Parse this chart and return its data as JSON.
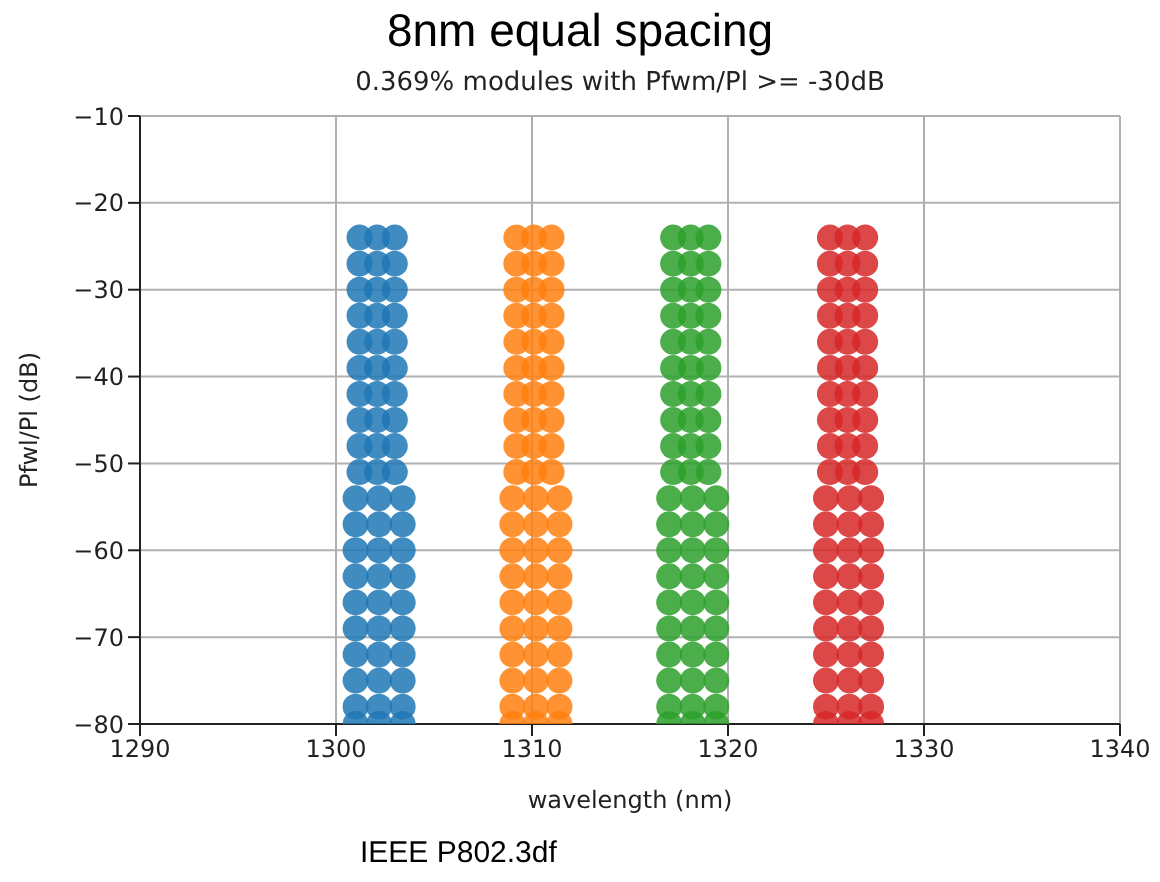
{
  "chart_data": {
    "type": "scatter",
    "title": "8nm equal spacing",
    "subtitle": "0.369% modules with Pfwm/Pl >= -30dB",
    "xlabel": "wavelength (nm)",
    "ylabel": "Pfwl/Pl (dB)",
    "annotations": [
      "IEEE P802.3df"
    ],
    "xlim": [
      1290,
      1340
    ],
    "xticks": [
      1290,
      1300,
      1310,
      1320,
      1330,
      1340
    ],
    "ylim": [
      -80,
      -10
    ],
    "yticks": [
      -80,
      -70,
      -60,
      -50,
      -40,
      -30,
      -20,
      -10
    ],
    "grid": true,
    "legend": false,
    "marker": "circle",
    "series": [
      {
        "color": "#1f77b4",
        "x": [
          1301.2,
          1302.1,
          1303.0,
          1301.2,
          1302.1,
          1303.0,
          1301.2,
          1302.1,
          1303.0,
          1301.2,
          1302.1,
          1303.0,
          1301.2,
          1302.1,
          1303.0,
          1301.2,
          1302.1,
          1303.0,
          1301.2,
          1302.1,
          1303.0,
          1301.2,
          1302.1,
          1303.0,
          1301.2,
          1302.1,
          1303.0,
          1301.2,
          1302.1,
          1303.0,
          1301.0,
          1302.2,
          1303.4,
          1301.0,
          1302.2,
          1303.4,
          1301.0,
          1302.2,
          1303.4,
          1301.0,
          1302.2,
          1303.4,
          1301.0,
          1302.2,
          1303.4,
          1301.0,
          1302.2,
          1303.4,
          1301.0,
          1302.2,
          1303.4,
          1301.0,
          1302.2,
          1303.4,
          1301.0,
          1302.2,
          1303.4,
          1301.0,
          1302.2,
          1303.4
        ],
        "values": [
          -24,
          -24,
          -24,
          -27,
          -27,
          -27,
          -30,
          -30,
          -30,
          -33,
          -33,
          -33,
          -36,
          -36,
          -36,
          -39,
          -39,
          -39,
          -42,
          -42,
          -42,
          -45,
          -45,
          -45,
          -48,
          -48,
          -48,
          -51,
          -51,
          -51,
          -54,
          -54,
          -54,
          -57,
          -57,
          -57,
          -60,
          -60,
          -60,
          -63,
          -63,
          -63,
          -66,
          -66,
          -66,
          -69,
          -69,
          -69,
          -72,
          -72,
          -72,
          -75,
          -75,
          -75,
          -78,
          -78,
          -78,
          -80,
          -80,
          -80
        ]
      },
      {
        "color": "#ff7f0e",
        "x": [
          1309.2,
          1310.1,
          1311.0,
          1309.2,
          1310.1,
          1311.0,
          1309.2,
          1310.1,
          1311.0,
          1309.2,
          1310.1,
          1311.0,
          1309.2,
          1310.1,
          1311.0,
          1309.2,
          1310.1,
          1311.0,
          1309.2,
          1310.1,
          1311.0,
          1309.2,
          1310.1,
          1311.0,
          1309.2,
          1310.1,
          1311.0,
          1309.2,
          1310.1,
          1311.0,
          1309.0,
          1310.2,
          1311.4,
          1309.0,
          1310.2,
          1311.4,
          1309.0,
          1310.2,
          1311.4,
          1309.0,
          1310.2,
          1311.4,
          1309.0,
          1310.2,
          1311.4,
          1309.0,
          1310.2,
          1311.4,
          1309.0,
          1310.2,
          1311.4,
          1309.0,
          1310.2,
          1311.4,
          1309.0,
          1310.2,
          1311.4,
          1309.0,
          1310.2,
          1311.4
        ],
        "values": [
          -24,
          -24,
          -24,
          -27,
          -27,
          -27,
          -30,
          -30,
          -30,
          -33,
          -33,
          -33,
          -36,
          -36,
          -36,
          -39,
          -39,
          -39,
          -42,
          -42,
          -42,
          -45,
          -45,
          -45,
          -48,
          -48,
          -48,
          -51,
          -51,
          -51,
          -54,
          -54,
          -54,
          -57,
          -57,
          -57,
          -60,
          -60,
          -60,
          -63,
          -63,
          -63,
          -66,
          -66,
          -66,
          -69,
          -69,
          -69,
          -72,
          -72,
          -72,
          -75,
          -75,
          -75,
          -78,
          -78,
          -78,
          -80,
          -80,
          -80
        ]
      },
      {
        "color": "#2ca02c",
        "x": [
          1317.2,
          1318.1,
          1319.0,
          1317.2,
          1318.1,
          1319.0,
          1317.2,
          1318.1,
          1319.0,
          1317.2,
          1318.1,
          1319.0,
          1317.2,
          1318.1,
          1319.0,
          1317.2,
          1318.1,
          1319.0,
          1317.2,
          1318.1,
          1319.0,
          1317.2,
          1318.1,
          1319.0,
          1317.2,
          1318.1,
          1319.0,
          1317.2,
          1318.1,
          1319.0,
          1317.0,
          1318.2,
          1319.4,
          1317.0,
          1318.2,
          1319.4,
          1317.0,
          1318.2,
          1319.4,
          1317.0,
          1318.2,
          1319.4,
          1317.0,
          1318.2,
          1319.4,
          1317.0,
          1318.2,
          1319.4,
          1317.0,
          1318.2,
          1319.4,
          1317.0,
          1318.2,
          1319.4,
          1317.0,
          1318.2,
          1319.4,
          1317.0,
          1318.2,
          1319.4
        ],
        "values": [
          -24,
          -24,
          -24,
          -27,
          -27,
          -27,
          -30,
          -30,
          -30,
          -33,
          -33,
          -33,
          -36,
          -36,
          -36,
          -39,
          -39,
          -39,
          -42,
          -42,
          -42,
          -45,
          -45,
          -45,
          -48,
          -48,
          -48,
          -51,
          -51,
          -51,
          -54,
          -54,
          -54,
          -57,
          -57,
          -57,
          -60,
          -60,
          -60,
          -63,
          -63,
          -63,
          -66,
          -66,
          -66,
          -69,
          -69,
          -69,
          -72,
          -72,
          -72,
          -75,
          -75,
          -75,
          -78,
          -78,
          -78,
          -80,
          -80,
          -80
        ]
      },
      {
        "color": "#d62728",
        "x": [
          1325.2,
          1326.1,
          1327.0,
          1325.2,
          1326.1,
          1327.0,
          1325.2,
          1326.1,
          1327.0,
          1325.2,
          1326.1,
          1327.0,
          1325.2,
          1326.1,
          1327.0,
          1325.2,
          1326.1,
          1327.0,
          1325.2,
          1326.1,
          1327.0,
          1325.2,
          1326.1,
          1327.0,
          1325.2,
          1326.1,
          1327.0,
          1325.2,
          1326.1,
          1327.0,
          1325.0,
          1326.2,
          1327.3,
          1325.0,
          1326.2,
          1327.3,
          1325.0,
          1326.2,
          1327.3,
          1325.0,
          1326.2,
          1327.3,
          1325.0,
          1326.2,
          1327.3,
          1325.0,
          1326.2,
          1327.3,
          1325.0,
          1326.2,
          1327.3,
          1325.0,
          1326.2,
          1327.3,
          1325.0,
          1326.2,
          1327.3,
          1325.0,
          1326.2,
          1327.3
        ],
        "values": [
          -24,
          -24,
          -24,
          -27,
          -27,
          -27,
          -30,
          -30,
          -30,
          -33,
          -33,
          -33,
          -36,
          -36,
          -36,
          -39,
          -39,
          -39,
          -42,
          -42,
          -42,
          -45,
          -45,
          -45,
          -48,
          -48,
          -48,
          -51,
          -51,
          -51,
          -54,
          -54,
          -54,
          -57,
          -57,
          -57,
          -60,
          -60,
          -60,
          -63,
          -63,
          -63,
          -66,
          -66,
          -66,
          -69,
          -69,
          -69,
          -72,
          -72,
          -72,
          -75,
          -75,
          -75,
          -78,
          -78,
          -78,
          -80,
          -80,
          -80
        ]
      }
    ]
  }
}
